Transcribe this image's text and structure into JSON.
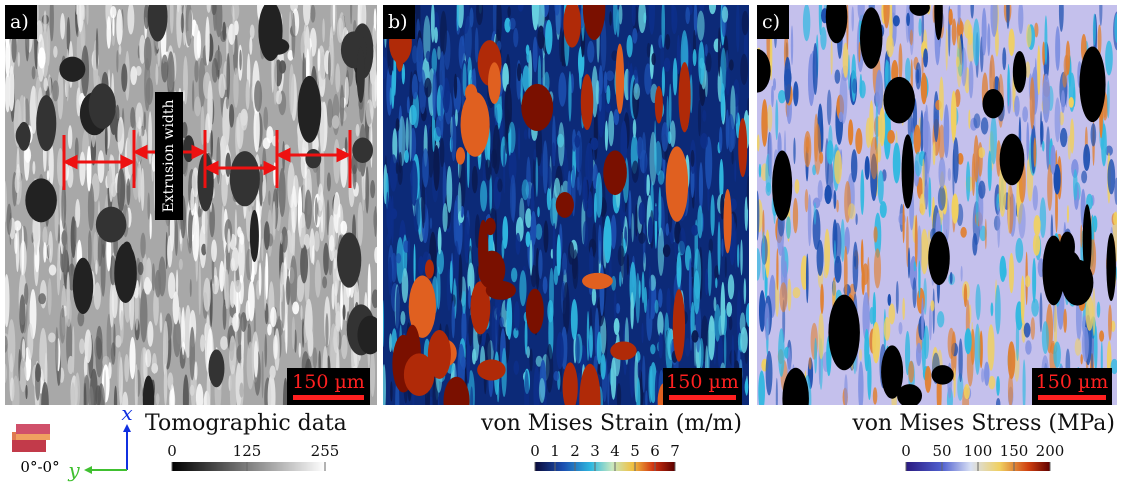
{
  "panels": [
    {
      "label": "a)",
      "scale_bar": "150 µm",
      "annotation": "Extrusion width",
      "colorbar": {
        "title": "Tomographic data",
        "lim": [
          0,
          255
        ],
        "ticks": [
          0,
          125,
          255
        ]
      }
    },
    {
      "label": "b)",
      "scale_bar": "150 µm",
      "colorbar": {
        "title": "von Mises Strain (m/m)",
        "lim": [
          0,
          7
        ],
        "ticks": [
          0,
          1,
          2,
          3,
          4,
          5,
          6,
          7
        ]
      }
    },
    {
      "label": "c)",
      "scale_bar": "150 µm",
      "colorbar": {
        "title": "von Mises Stress (MPa)",
        "lim": [
          0,
          200
        ],
        "ticks": [
          0,
          50,
          100,
          150,
          200
        ]
      }
    }
  ],
  "legend": {
    "orientation": "0°-0°",
    "axis_x": "x",
    "axis_y": "y"
  }
}
